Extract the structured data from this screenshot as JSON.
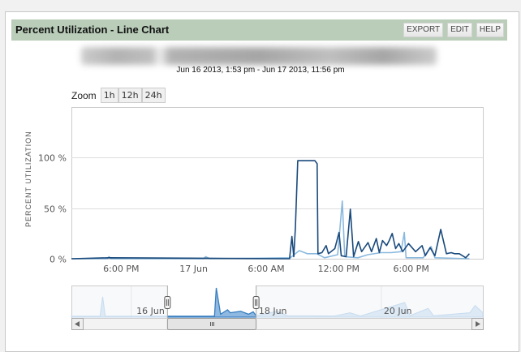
{
  "header": {
    "title": "Percent Utilization - Line Chart",
    "buttons": [
      "EXPORT",
      "EDIT",
      "HELP"
    ]
  },
  "date_range": "Jun 16 2013, 1:53 pm - Jun 17 2013, 11:56 pm",
  "zoom": {
    "label": "Zoom",
    "options": [
      "1h",
      "12h",
      "24h"
    ]
  },
  "colors": {
    "header_bg": "#b9cdb9",
    "series_dark": "#1a4a7d",
    "series_light": "#8ab9de",
    "navigator": "#3a7fc1"
  },
  "chart_data": {
    "type": "line",
    "ylabel": "PERCENT UTILIZATION",
    "ylim": [
      0,
      150
    ],
    "yticks": [
      "0 %",
      "50 %",
      "100 %"
    ],
    "ytick_values": [
      0,
      50,
      100
    ],
    "xlim": [
      "2013-06-16 13:53",
      "2013-06-17 23:56"
    ],
    "xticks": [
      {
        "t": "2013-06-16 18:00",
        "label": "6:00 PM"
      },
      {
        "t": "2013-06-17 00:00",
        "label": "17 Jun"
      },
      {
        "t": "2013-06-17 06:00",
        "label": "6:00 AM"
      },
      {
        "t": "2013-06-17 12:00",
        "label": "12:00 PM"
      },
      {
        "t": "2013-06-17 18:00",
        "label": "6:00 PM"
      }
    ],
    "grid": true,
    "series": [
      {
        "color": "#1a4a7d",
        "points": [
          [
            "2013-06-16 13:53",
            0
          ],
          [
            "2013-06-16 17:00",
            1
          ],
          [
            "2013-06-17 07:56",
            0
          ],
          [
            "2013-06-17 08:08",
            22
          ],
          [
            "2013-06-17 08:17",
            2
          ],
          [
            "2013-06-17 08:25",
            31
          ],
          [
            "2013-06-17 08:37",
            97
          ],
          [
            "2013-06-17 10:02",
            97
          ],
          [
            "2013-06-17 10:13",
            94
          ],
          [
            "2013-06-17 10:17",
            5
          ],
          [
            "2013-06-17 10:37",
            6
          ],
          [
            "2013-06-17 10:58",
            13
          ],
          [
            "2013-06-17 11:09",
            5
          ],
          [
            "2013-06-17 11:41",
            10
          ],
          [
            "2013-06-17 12:02",
            26
          ],
          [
            "2013-06-17 12:13",
            3
          ],
          [
            "2013-06-17 12:37",
            2
          ],
          [
            "2013-06-17 12:58",
            49
          ],
          [
            "2013-06-17 13:14",
            2
          ],
          [
            "2013-06-17 13:38",
            17
          ],
          [
            "2013-06-17 13:54",
            7
          ],
          [
            "2013-06-17 14:26",
            16
          ],
          [
            "2013-06-17 14:43",
            7
          ],
          [
            "2013-06-17 15:07",
            20
          ],
          [
            "2013-06-17 15:22",
            6
          ],
          [
            "2013-06-17 15:38",
            18
          ],
          [
            "2013-06-17 15:58",
            13
          ],
          [
            "2013-06-17 16:11",
            18
          ],
          [
            "2013-06-17 16:26",
            25
          ],
          [
            "2013-06-17 16:43",
            10
          ],
          [
            "2013-06-17 16:59",
            15
          ],
          [
            "2013-06-17 17:18",
            7
          ],
          [
            "2013-06-17 17:47",
            15
          ],
          [
            "2013-06-17 18:22",
            7
          ],
          [
            "2013-06-17 18:54",
            13
          ],
          [
            "2013-06-17 19:10",
            3
          ],
          [
            "2013-06-17 19:34",
            11
          ],
          [
            "2013-06-17 19:58",
            3
          ],
          [
            "2013-06-17 20:27",
            29
          ],
          [
            "2013-06-17 20:55",
            5
          ],
          [
            "2013-06-17 21:19",
            6
          ],
          [
            "2013-06-17 21:35",
            5
          ],
          [
            "2013-06-17 21:59",
            5
          ],
          [
            "2013-06-17 22:31",
            1
          ],
          [
            "2013-06-17 22:49",
            5
          ]
        ]
      },
      {
        "color": "#8ab9de",
        "points": [
          [
            "2013-06-16 13:53",
            0
          ],
          [
            "2013-06-16 16:50",
            0
          ],
          [
            "2013-06-16 17:00",
            2
          ],
          [
            "2013-06-16 17:10",
            0
          ],
          [
            "2013-06-17 00:50",
            0
          ],
          [
            "2013-06-17 01:00",
            2
          ],
          [
            "2013-06-17 01:20",
            0
          ],
          [
            "2013-06-17 08:00",
            1
          ],
          [
            "2013-06-17 08:44",
            8
          ],
          [
            "2013-06-17 09:24",
            5
          ],
          [
            "2013-06-17 10:12",
            5
          ],
          [
            "2013-06-17 10:50",
            1
          ],
          [
            "2013-06-17 11:55",
            4
          ],
          [
            "2013-06-17 12:18",
            57
          ],
          [
            "2013-06-17 12:30",
            2
          ],
          [
            "2013-06-17 13:35",
            1
          ],
          [
            "2013-06-17 14:25",
            4
          ],
          [
            "2013-06-17 15:30",
            6
          ],
          [
            "2013-06-17 16:20",
            6
          ],
          [
            "2013-06-17 17:10",
            7
          ],
          [
            "2013-06-17 17:26",
            26
          ],
          [
            "2013-06-17 17:35",
            1
          ],
          [
            "2013-06-17 19:00",
            1
          ],
          [
            "2013-06-17 19:39",
            12
          ],
          [
            "2013-06-17 19:58",
            1
          ],
          [
            "2013-06-17 22:49",
            0
          ]
        ]
      }
    ],
    "navigator": {
      "xlim": [
        "2013-06-15 01:00",
        "2013-06-21 15:00"
      ],
      "selected": [
        "2013-06-16 13:53",
        "2013-06-17 23:56"
      ],
      "xticks": [
        {
          "t": "2013-06-16 00:00",
          "label": "16 Jun"
        },
        {
          "t": "2013-06-18 00:00",
          "label": "18 Jun"
        },
        {
          "t": "2013-06-20 00:00",
          "label": "20 Jun"
        }
      ],
      "points": [
        [
          "2013-06-15 01:00",
          3
        ],
        [
          "2013-06-15 12:00",
          3
        ],
        [
          "2013-06-15 13:00",
          70
        ],
        [
          "2013-06-15 14:00",
          3
        ],
        [
          "2013-06-17 07:56",
          3
        ],
        [
          "2013-06-17 08:37",
          100
        ],
        [
          "2013-06-17 10:17",
          10
        ],
        [
          "2013-06-17 12:58",
          25
        ],
        [
          "2013-06-17 14:00",
          15
        ],
        [
          "2013-06-17 18:00",
          20
        ],
        [
          "2013-06-17 21:00",
          10
        ],
        [
          "2013-06-17 22:49",
          18
        ],
        [
          "2013-06-17 23:56",
          5
        ],
        [
          "2013-06-18 08:00",
          20
        ],
        [
          "2013-06-18 12:00",
          5
        ],
        [
          "2013-06-19 06:00",
          4
        ],
        [
          "2013-06-19 12:00",
          15
        ],
        [
          "2013-06-19 16:00",
          4
        ],
        [
          "2013-06-20 09:00",
          50
        ],
        [
          "2013-06-20 11:00",
          5
        ],
        [
          "2013-06-20 18:00",
          30
        ],
        [
          "2013-06-20 20:00",
          5
        ],
        [
          "2013-06-21 10:00",
          15
        ],
        [
          "2013-06-21 12:00",
          40
        ],
        [
          "2013-06-21 15:00",
          15
        ]
      ]
    }
  }
}
